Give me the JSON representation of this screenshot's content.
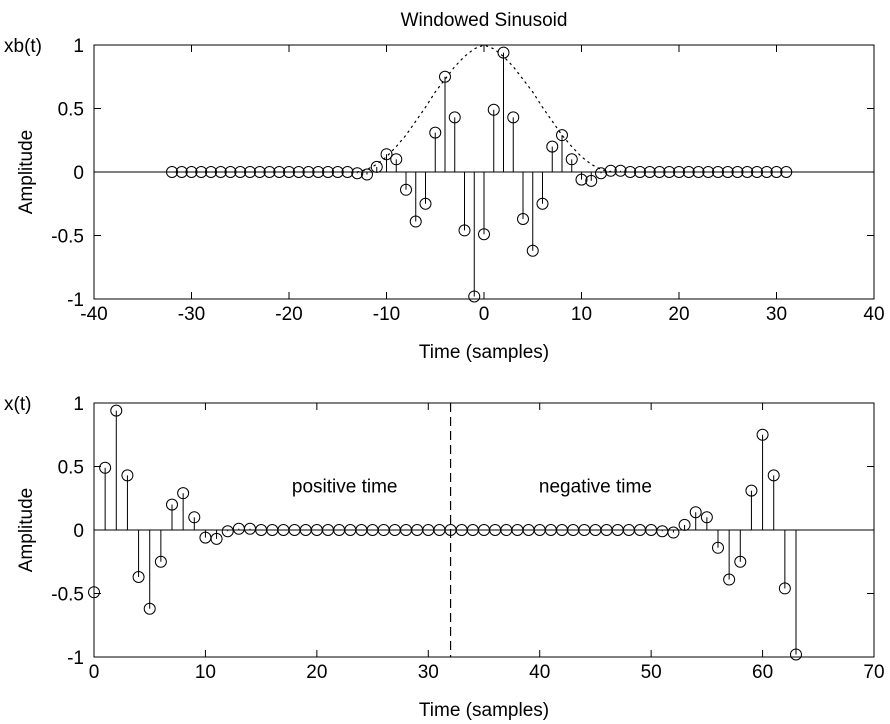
{
  "chart_data": [
    {
      "type": "stem",
      "title": "Windowed Sinusoid",
      "xlabel": "Time (samples)",
      "ylabel": "Amplitude",
      "corner_label": "xb(t)",
      "xlim": [
        -40,
        40
      ],
      "ylim": [
        -1,
        1
      ],
      "xticks": [
        -40,
        -30,
        -20,
        -10,
        0,
        10,
        20,
        30,
        40
      ],
      "yticks": [
        -1,
        -0.5,
        0,
        0.5,
        1
      ],
      "ytick_labels": [
        "-1",
        "-0.5",
        "0",
        "0.5",
        "1"
      ],
      "grid": false,
      "series": [
        {
          "style": "stem-circle",
          "x": [
            -32,
            -31,
            -30,
            -29,
            -28,
            -27,
            -26,
            -25,
            -24,
            -23,
            -22,
            -21,
            -20,
            -19,
            -18,
            -17,
            -16,
            -15,
            -14,
            -13,
            -12,
            -11,
            -10,
            -9,
            -8,
            -7,
            -6,
            -5,
            -4,
            -3,
            -2,
            -1,
            0,
            1,
            2,
            3,
            4,
            5,
            6,
            7,
            8,
            9,
            10,
            11,
            12,
            13,
            14,
            15,
            16,
            17,
            18,
            19,
            20,
            21,
            22,
            23,
            24,
            25,
            26,
            27,
            28,
            29,
            30,
            31
          ],
          "y": [
            0,
            0,
            0,
            0,
            0,
            0,
            0,
            0,
            0,
            0,
            0,
            0,
            0,
            0,
            0,
            0,
            0,
            0,
            0,
            -0.01,
            -0.02,
            0.04,
            0.14,
            0.1,
            -0.14,
            -0.39,
            -0.25,
            0.31,
            0.75,
            0.43,
            -0.46,
            -0.98,
            -0.49,
            0.49,
            0.94,
            0.43,
            -0.37,
            -0.62,
            -0.25,
            0.2,
            0.29,
            0.1,
            -0.06,
            -0.07,
            -0.01,
            0.01,
            0.01,
            0,
            0,
            0,
            0,
            0,
            0,
            0,
            0,
            0,
            0,
            0,
            0,
            0,
            0,
            0,
            0,
            0
          ]
        },
        {
          "style": "dotted-envelope",
          "x": [
            -13,
            -12,
            -11,
            -10,
            -9,
            -8,
            -7,
            -6,
            -5,
            -4,
            -3,
            -2,
            -1,
            0,
            1,
            2,
            3,
            4,
            5,
            6,
            7,
            8,
            9,
            10,
            11,
            12,
            13
          ],
          "y": [
            0,
            0.02,
            0.06,
            0.12,
            0.2,
            0.29,
            0.4,
            0.51,
            0.63,
            0.73,
            0.83,
            0.91,
            0.97,
            1.0,
            0.97,
            0.91,
            0.83,
            0.73,
            0.63,
            0.51,
            0.4,
            0.29,
            0.2,
            0.12,
            0.06,
            0.02,
            0
          ]
        }
      ]
    },
    {
      "type": "stem",
      "xlabel": "Time (samples)",
      "ylabel": "Amplitude",
      "corner_label": "x(t)",
      "xlim": [
        0,
        70
      ],
      "ylim": [
        -1,
        1
      ],
      "xticks": [
        0,
        10,
        20,
        30,
        40,
        50,
        60,
        70
      ],
      "yticks": [
        -1,
        -0.5,
        0,
        0.5,
        1
      ],
      "ytick_labels": [
        "-1",
        "-0.5",
        "0",
        "0.5",
        "1"
      ],
      "grid": false,
      "annotations": [
        {
          "text": "positive time",
          "x": 22.5,
          "y": 0.2
        },
        {
          "text": "negative time",
          "x": 45,
          "y": 0.2
        }
      ],
      "divider_x": 32,
      "series": [
        {
          "style": "stem-circle",
          "x": [
            0,
            1,
            2,
            3,
            4,
            5,
            6,
            7,
            8,
            9,
            10,
            11,
            12,
            13,
            14,
            15,
            16,
            17,
            18,
            19,
            20,
            21,
            22,
            23,
            24,
            25,
            26,
            27,
            28,
            29,
            30,
            31,
            32,
            33,
            34,
            35,
            36,
            37,
            38,
            39,
            40,
            41,
            42,
            43,
            44,
            45,
            46,
            47,
            48,
            49,
            50,
            51,
            52,
            53,
            54,
            55,
            56,
            57,
            58,
            59,
            60,
            61,
            62,
            63
          ],
          "y": [
            -0.49,
            0.49,
            0.94,
            0.43,
            -0.37,
            -0.62,
            -0.25,
            0.2,
            0.29,
            0.1,
            -0.06,
            -0.07,
            -0.01,
            0.01,
            0.01,
            0,
            0,
            0,
            0,
            0,
            0,
            0,
            0,
            0,
            0,
            0,
            0,
            0,
            0,
            0,
            0,
            0,
            0,
            0,
            0,
            0,
            0,
            0,
            0,
            0,
            0,
            0,
            0,
            0,
            0,
            0,
            0,
            0,
            0,
            0,
            0,
            -0.01,
            -0.02,
            0.04,
            0.14,
            0.1,
            -0.14,
            -0.39,
            -0.25,
            0.31,
            0.75,
            0.43,
            -0.46,
            -0.98
          ]
        }
      ]
    }
  ]
}
